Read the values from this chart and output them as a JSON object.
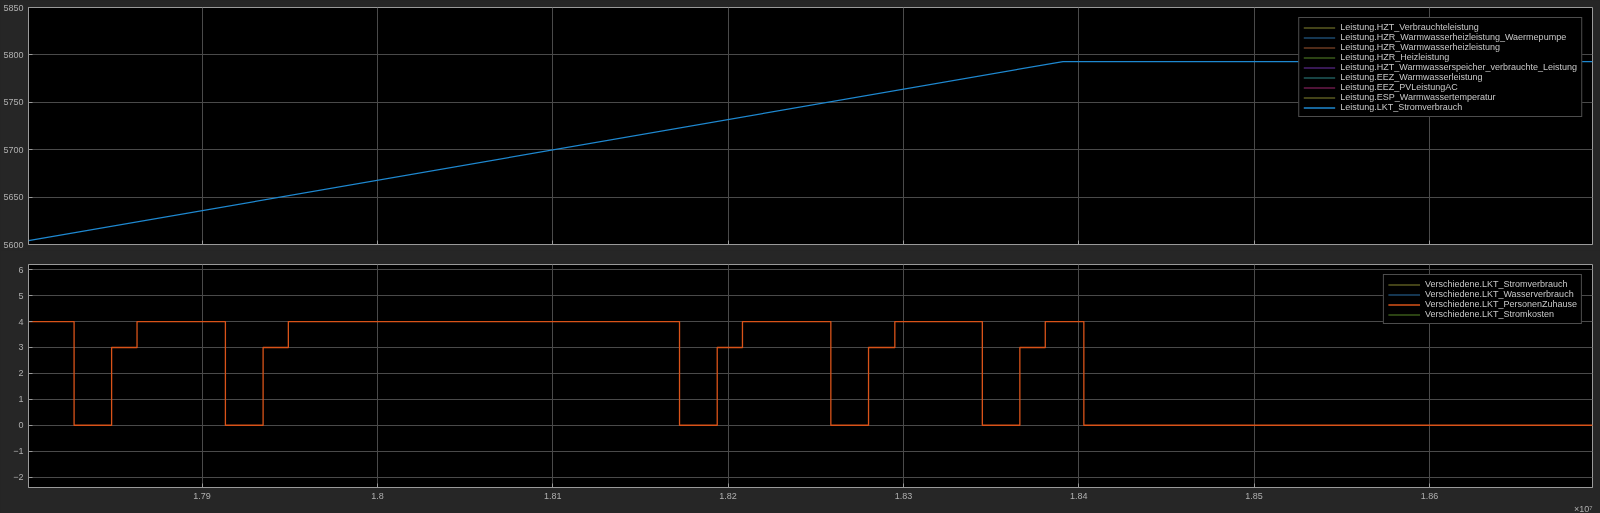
{
  "chart_data": [
    {
      "type": "line",
      "xlim": [
        1.7801,
        1.8693
      ],
      "ylim": [
        5600,
        5850
      ],
      "xticks": [
        1.79,
        1.8,
        1.81,
        1.82,
        1.83,
        1.84,
        1.85,
        1.86
      ],
      "yticks": [
        5600,
        5650,
        5700,
        5750,
        5800,
        5850
      ],
      "grid": true,
      "legend": "top right",
      "tick_labels": "y",
      "series": [
        {
          "name": "Leistung.HZT_Verbrauchteleistung",
          "color": "#5a5a20"
        },
        {
          "name": "Leistung.HZR_Warmwasserheizleistung_Waermepumpe",
          "color": "#1d4a6e"
        },
        {
          "name": "Leistung.HZR_Warmwasserheizleistung",
          "color": "#6b3a20"
        },
        {
          "name": "Leistung.HZR_Heizleistung",
          "color": "#3a5a1a"
        },
        {
          "name": "Leistung.HZT_Warmwasserspeicher_verbrauchte_Leistung",
          "color": "#4a2070"
        },
        {
          "name": "Leistung.EEZ_Warmwasserleistung",
          "color": "#1f5a5a"
        },
        {
          "name": "Leistung.EEZ_PVLeistungAC",
          "color": "#6a1a4a"
        },
        {
          "name": "Leistung.ESP_Warmwassertemperatur",
          "color": "#5a5a20"
        },
        {
          "name": "Leistung.LKT_Stromverbrauch",
          "color": "#1e88d0",
          "x": [
            1.7801,
            1.8391,
            1.8693
          ],
          "values": [
            5604,
            5793,
            5793
          ]
        }
      ]
    },
    {
      "type": "step",
      "xlim": [
        1.7801,
        1.8693
      ],
      "ylim": [
        -2.4,
        6.2
      ],
      "xticks": [
        1.79,
        1.8,
        1.81,
        1.82,
        1.83,
        1.84,
        1.85,
        1.86
      ],
      "yticks": [
        -2,
        -1,
        0,
        1,
        2,
        3,
        4,
        5,
        6
      ],
      "grid": true,
      "legend": "top right",
      "annotations": [
        "×10⁷"
      ],
      "series": [
        {
          "name": "Verschiedene.LKT_Stromverbrauch",
          "color": "#5a5a20"
        },
        {
          "name": "Verschiedene.LKT_Wasserverbrauch",
          "color": "#1d4a6e"
        },
        {
          "name": "Verschiedene.LKT_PersonenZuhause",
          "color": "#d95319",
          "x": [
            1.7801,
            1.7827,
            1.78484,
            1.78629,
            1.79133,
            1.79348,
            1.79492,
            1.81723,
            1.81938,
            1.82082,
            1.82586,
            1.82801,
            1.82951,
            1.8345,
            1.83664,
            1.83809,
            1.84029,
            1.8693
          ],
          "values": [
            4,
            0,
            3,
            4,
            0,
            3,
            4,
            0,
            3,
            4,
            0,
            3,
            4,
            0,
            3,
            4,
            0,
            0
          ]
        },
        {
          "name": "Verschiedene.LKT_Stromkosten",
          "color": "#3a5a1a"
        }
      ]
    }
  ]
}
